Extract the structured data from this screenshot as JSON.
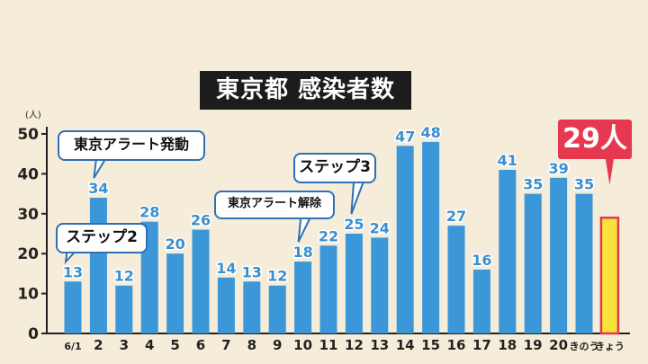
{
  "title": "東京都 感染者数",
  "chart_data": {
    "type": "bar",
    "title": "東京都 感染者数",
    "ylabel": "(人)",
    "ylim": [
      0,
      50
    ],
    "yticks": [
      0,
      10,
      20,
      30,
      40,
      50
    ],
    "categories": [
      "6/1",
      "2",
      "3",
      "4",
      "5",
      "6",
      "7",
      "8",
      "9",
      "10",
      "11",
      "12",
      "13",
      "14",
      "15",
      "16",
      "17",
      "18",
      "19",
      "20",
      "きのう",
      "きょう"
    ],
    "values": [
      13,
      34,
      12,
      28,
      20,
      26,
      14,
      13,
      12,
      18,
      22,
      25,
      24,
      47,
      48,
      27,
      16,
      41,
      35,
      39,
      35,
      29
    ],
    "value_labels": [
      "13",
      "34",
      "12",
      "28",
      "20",
      "26",
      "14",
      "13",
      "12",
      "18",
      "22",
      "25",
      "24",
      "47",
      "48",
      "27",
      "16",
      "41",
      "35",
      "39",
      "35",
      ""
    ],
    "highlight_index": 21,
    "highlight_label": "29人",
    "grid": false,
    "colors": {
      "bar": "#3b97d8",
      "label": "#3a8fd0",
      "highlight_fill": "#f7e33a",
      "highlight_border": "#e63950",
      "axis": "#222222"
    },
    "annotations": [
      {
        "text": "ステップ2",
        "target_index": 0
      },
      {
        "text": "東京アラート発動",
        "target_index": 1
      },
      {
        "text": "東京アラート解除",
        "target_index": 9
      },
      {
        "text": "ステップ3",
        "target_index": 11
      }
    ]
  }
}
